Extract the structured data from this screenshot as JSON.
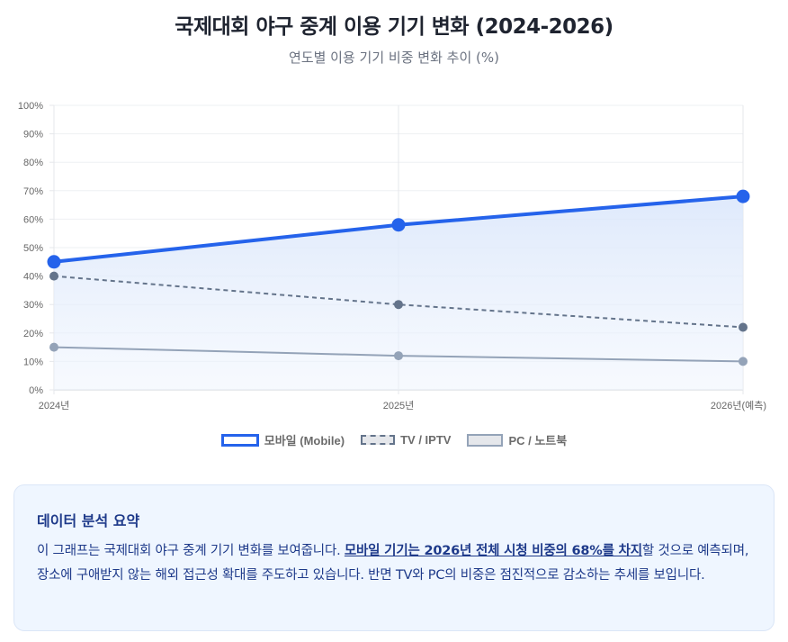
{
  "header": {
    "title": "국제대회 야구 중계 이용 기기 변화 (2024-2026)",
    "subtitle": "연도별 이용 기기 비중 변화 추이 (%)"
  },
  "legend": {
    "items": [
      {
        "label": "모바일 (Mobile)",
        "style": "solid-thick",
        "color": "#2563eb"
      },
      {
        "label": "TV / IPTV",
        "style": "dashed",
        "color": "#64748b"
      },
      {
        "label": "PC / 노트북",
        "style": "solid-thin",
        "color": "#94a3b8"
      }
    ]
  },
  "summary": {
    "heading": "데이터 분석 요약",
    "text_before": "이 그래프는 국제대회 야구 중계 기기 변화를 보여줍니다. ",
    "highlight": "모바일 기기는 2026년 전체 시청 비중의 68%를 차지",
    "text_after": "할 것으로 예측되며, 장소에 구애받지 않는 해외 접근성 확대를 주도하고 있습니다. 반면 TV와 PC의 비중은 점진적으로 감소하는 추세를 보입니다."
  },
  "chart_data": {
    "type": "line",
    "title": "국제대회 야구 중계 이용 기기 변화 (2024-2026)",
    "subtitle": "연도별 이용 기기 비중 변화 추이 (%)",
    "categories": [
      "2024년",
      "2025년",
      "2026년(예측)"
    ],
    "series": [
      {
        "name": "모바일 (Mobile)",
        "values": [
          45,
          58,
          68
        ],
        "color": "#2563eb",
        "line": "solid",
        "fill": true
      },
      {
        "name": "TV / IPTV",
        "values": [
          40,
          30,
          22
        ],
        "color": "#64748b",
        "line": "dashed"
      },
      {
        "name": "PC / 노트북",
        "values": [
          15,
          12,
          10
        ],
        "color": "#94a3b8",
        "line": "solid"
      }
    ],
    "yticks": [
      "0%",
      "10%",
      "20%",
      "30%",
      "40%",
      "50%",
      "60%",
      "70%",
      "80%",
      "90%",
      "100%"
    ],
    "xlabel": "",
    "ylabel": "",
    "ylim": [
      0,
      100
    ],
    "grid": true,
    "legend_position": "bottom"
  }
}
